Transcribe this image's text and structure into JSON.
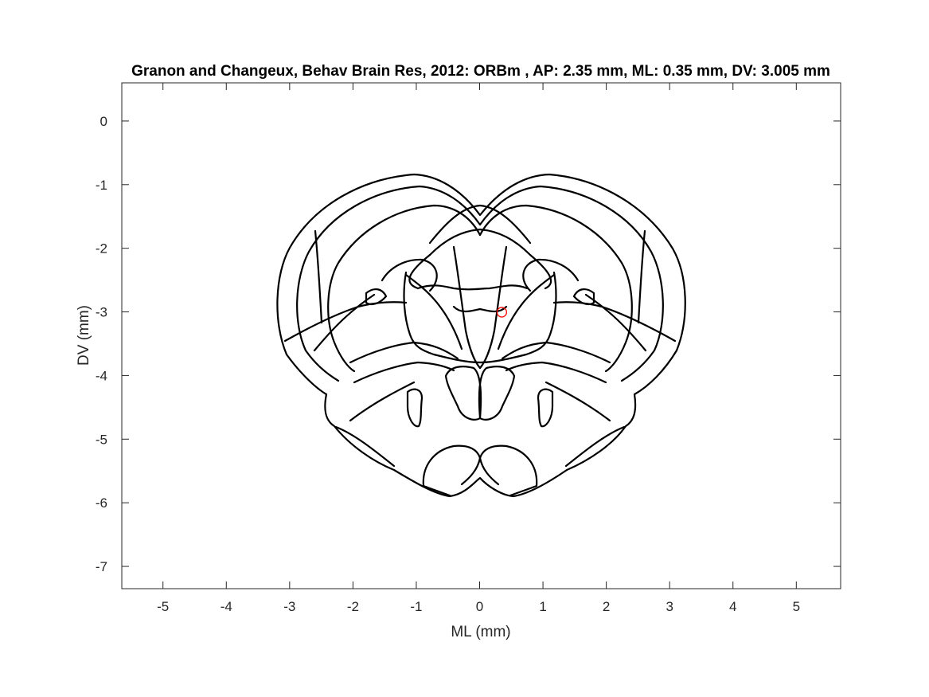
{
  "chart_data": {
    "type": "scatter",
    "title": "Granon and Changeux, Behav Brain Res, 2012: ORBm , AP: 2.35 mm, ML: 0.35 mm, DV: 3.005 mm",
    "xlabel": "ML (mm)",
    "ylabel": "DV (mm)",
    "xlim": [
      -5.65,
      5.7
    ],
    "ylim": [
      -7.35,
      0.6
    ],
    "x_ticks": [
      -5,
      -4,
      -3,
      -2,
      -1,
      0,
      1,
      2,
      3,
      4,
      5
    ],
    "y_ticks": [
      0,
      -1,
      -2,
      -3,
      -4,
      -5,
      -6,
      -7
    ],
    "grid": false,
    "points": [
      {
        "x": 0.35,
        "y": -3.005,
        "color": "#ff0000",
        "marker": "open-circle"
      }
    ],
    "background_outline": "coronal brain section atlas outline"
  }
}
